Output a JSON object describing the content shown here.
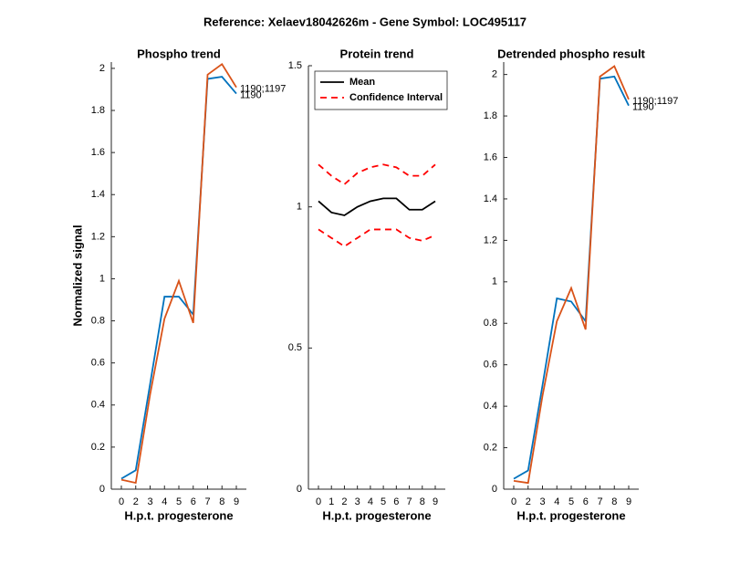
{
  "title": "Reference:  Xelaev18042626m - Gene Symbol:  LOC495117",
  "chart_data": [
    {
      "type": "line",
      "title": "Phospho trend",
      "xlabel": "H.p.t. progesterone",
      "ylabel": "Normalized signal",
      "categories": [
        "0",
        "2",
        "3",
        "4",
        "5",
        "6",
        "7",
        "8",
        "9"
      ],
      "ylim": [
        0,
        2.03
      ],
      "yticks": [
        0,
        0.2,
        0.4,
        0.6,
        0.8,
        1,
        1.2,
        1.4,
        1.6,
        1.8,
        2
      ],
      "legend": "line-end",
      "series": [
        {
          "name": "1190",
          "color": "#0072bd",
          "values": [
            0.05,
            0.09,
            0.5,
            0.915,
            0.915,
            0.83,
            1.95,
            1.96,
            1.88
          ]
        },
        {
          "name": "1190;1197",
          "color": "#d95319",
          "values": [
            0.045,
            0.03,
            0.45,
            0.81,
            0.99,
            0.79,
            1.97,
            2.02,
            1.91
          ]
        }
      ]
    },
    {
      "type": "line",
      "title": "Protein trend",
      "xlabel": "H.p.t. progesterone",
      "categories": [
        "0",
        "1",
        "2",
        "3",
        "4",
        "5",
        "6",
        "7",
        "8",
        "9"
      ],
      "ylim": [
        0,
        1.5
      ],
      "yticks": [
        0,
        0.5,
        1,
        1.5
      ],
      "legend": "northwest",
      "series": [
        {
          "name": "Mean",
          "color": "#000000",
          "dash": false,
          "values": [
            1.02,
            0.98,
            0.97,
            1.0,
            1.02,
            1.03,
            1.03,
            0.99,
            0.99,
            1.02
          ]
        },
        {
          "name": "Confidence Interval",
          "color": "#ff0000",
          "dash": true,
          "values": [
            1.15,
            1.11,
            1.08,
            1.12,
            1.14,
            1.15,
            1.14,
            1.11,
            1.11,
            1.15
          ]
        },
        {
          "color": "#ff0000",
          "dash": true,
          "values": [
            0.92,
            0.89,
            0.86,
            0.89,
            0.92,
            0.92,
            0.92,
            0.89,
            0.88,
            0.9
          ]
        }
      ]
    },
    {
      "type": "line",
      "title": "Detrended phospho result",
      "xlabel": "H.p.t. progesterone",
      "categories": [
        "0",
        "2",
        "3",
        "4",
        "5",
        "6",
        "7",
        "8",
        "9"
      ],
      "ylim": [
        0,
        2.06
      ],
      "yticks": [
        0,
        0.2,
        0.4,
        0.6,
        0.8,
        1,
        1.2,
        1.4,
        1.6,
        1.8,
        2
      ],
      "legend": "line-end",
      "series": [
        {
          "name": "1190",
          "color": "#0072bd",
          "values": [
            0.05,
            0.09,
            0.5,
            0.92,
            0.905,
            0.81,
            1.98,
            1.99,
            1.85
          ]
        },
        {
          "name": "1190;1197",
          "color": "#d95319",
          "values": [
            0.04,
            0.03,
            0.45,
            0.81,
            0.97,
            0.77,
            1.99,
            2.04,
            1.88
          ]
        }
      ]
    }
  ]
}
